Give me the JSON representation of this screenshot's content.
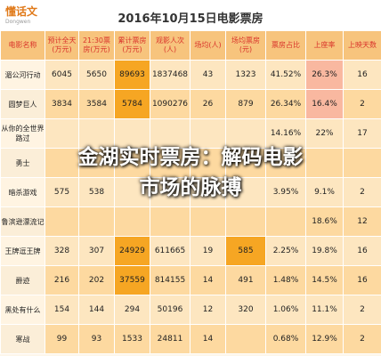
{
  "logo": {
    "name": "懂话文",
    "sub": "Dongwen"
  },
  "header": {
    "title": "2016年10月15日电影票房"
  },
  "overlay": {
    "lines": [
      "金湖实时票房：解码电影",
      "市场的脉搏"
    ]
  },
  "table": {
    "columns": [
      "电影名称",
      "预计全天(万元)",
      "21:30票房(万元)",
      "累计票房(万元)",
      "观影人次(人)",
      "场均(人)",
      "场均票房(元)",
      "票房占比",
      "上座率",
      "上映天数"
    ],
    "rows": [
      [
        "湄公河行动",
        "6045",
        "5650",
        "89693",
        "1837468",
        "43",
        "1323",
        "41.52%",
        "26.3%",
        "16"
      ],
      [
        "圆梦巨人",
        "3834",
        "3584",
        "5784",
        "1090276",
        "26",
        "879",
        "26.34%",
        "16.4%",
        "2"
      ],
      [
        "从你的全世界路过",
        null,
        null,
        null,
        null,
        null,
        null,
        "14.16%",
        "22%",
        "17"
      ],
      [
        "勇士",
        null,
        null,
        null,
        null,
        null,
        null,
        null,
        null,
        null
      ],
      [
        "暗杀游戏",
        "575",
        "538",
        null,
        null,
        null,
        null,
        "3.95%",
        "9.1%",
        "2"
      ],
      [
        "鲁滨逊漂流记",
        null,
        null,
        null,
        null,
        null,
        null,
        null,
        "18.6%",
        "12"
      ],
      [
        "王牌逗王牌",
        "328",
        "307",
        "24929",
        "611665",
        "19",
        "585",
        "2.25%",
        "19.8%",
        "16"
      ],
      [
        "爵迹",
        "216",
        "202",
        "37559",
        "814155",
        "14",
        "491",
        "1.48%",
        "14.5%",
        "16"
      ],
      [
        "黑处有什么",
        "154",
        "144",
        "294",
        "50196",
        "12",
        "320",
        "1.06%",
        "11.1%",
        "2"
      ],
      [
        "寒战",
        "99",
        "93",
        "1533",
        "24811",
        "14",
        null,
        "0.68%",
        "12.9%",
        "2"
      ]
    ]
  }
}
